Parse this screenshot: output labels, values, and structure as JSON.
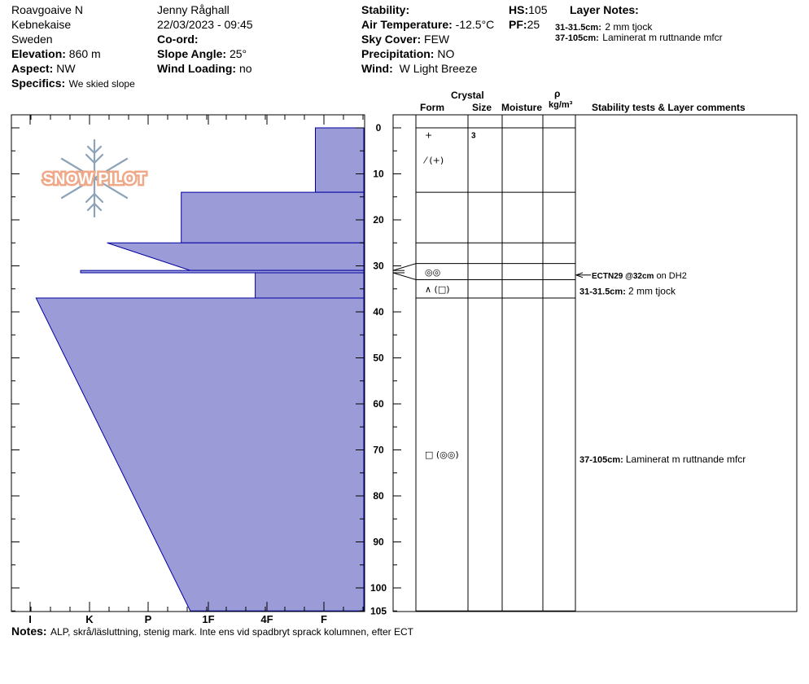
{
  "header": {
    "location": "Roavgoaive N",
    "region": "Kebnekaise",
    "country": "Sweden",
    "elevation_label": "Elevation:",
    "elevation_value": "860 m",
    "aspect_label": "Aspect:",
    "aspect_value": "NW",
    "specifics_label": "Specifics:",
    "specifics_value": "We skied slope",
    "observer": "Jenny Råghall",
    "datetime": "22/03/2023 - 09:45",
    "coord_label": "Co-ord:",
    "slope_label": "Slope Angle:",
    "slope_value": "25°",
    "wind_loading_label": "Wind Loading:",
    "wind_loading_value": "no",
    "stability_label": "Stability:",
    "air_temp_label": "Air Temperature:",
    "air_temp_value": "-12.5°C",
    "sky_label": "Sky Cover:",
    "sky_value": "FEW",
    "precip_label": "Precipitation:",
    "precip_value": "NO",
    "wind_label": "Wind:",
    "wind_value": "W Light Breeze",
    "hs_label": "HS:",
    "hs_value": "105",
    "pf_label": "PF:",
    "pf_value": "25",
    "layer_notes_title": "Layer Notes:",
    "layer_notes": [
      {
        "range": "31-31.5cm:",
        "text": "2 mm tjock"
      },
      {
        "range": "37-105cm:",
        "text": "Laminerat m ruttnande mfcr"
      }
    ]
  },
  "columns": {
    "crystal": "Crystal",
    "form": "Form",
    "size": "Size",
    "moisture": "Moisture",
    "rho": "ρ",
    "density_unit": "kg/m³",
    "stability": "Stability tests & Layer comments"
  },
  "logo_text": "SNOW PILOT",
  "chart_data": {
    "type": "snow-profile",
    "total_depth_cm": 105,
    "depth_ticks": [
      0,
      10,
      20,
      30,
      40,
      50,
      60,
      70,
      80,
      90,
      100,
      105
    ],
    "hardness_scale": [
      "I",
      "K",
      "P",
      "1F",
      "4F",
      "F"
    ],
    "layers": [
      {
        "top": 0,
        "bottom": 14,
        "hardness_top": 1.15,
        "hardness_bottom": 1.15
      },
      {
        "top": 14,
        "bottom": 25,
        "hardness_top": 3.45,
        "hardness_bottom": 3.45
      },
      {
        "top": 25,
        "bottom": 31,
        "hardness_top": 4.7,
        "hardness_bottom": 3.3
      },
      {
        "top": 31,
        "bottom": 31.5,
        "hardness_top": 5.15,
        "hardness_bottom": 5.15
      },
      {
        "top": 31.5,
        "bottom": 37,
        "hardness_top": 2.2,
        "hardness_bottom": 2.2
      },
      {
        "top": 37,
        "bottom": 105,
        "hardness_top": 5.9,
        "hardness_bottom": 3.3
      }
    ],
    "layer_boundaries": [
      0,
      14,
      25,
      29.5,
      33,
      37,
      105
    ],
    "crystal_rows": [
      {
        "depth": 1.5,
        "form": "+",
        "size": "3"
      },
      {
        "depth": 7,
        "form": "⁄ (+)",
        "size": ""
      },
      {
        "depth": 31.3,
        "form": "◎◎",
        "size": ""
      },
      {
        "depth": 35,
        "form": "∧ (□)",
        "size": ""
      },
      {
        "depth": 71,
        "form": "□ (◎◎)",
        "size": ""
      }
    ],
    "stability_tests": [
      {
        "depth": 32,
        "code": "ECTN29 @32cm",
        "text": "on DH2"
      }
    ],
    "layer_comments": [
      {
        "depth": 35.5,
        "range": "31-31.5cm:",
        "text": "2 mm tjock"
      },
      {
        "depth": 72,
        "range": "37-105cm:",
        "text": "Laminerat m ruttnande mfcr"
      }
    ]
  },
  "notes": {
    "label": "Notes:",
    "text": "ALP, skrå/läsluttning, stenig mark. Inte ens vid spadbryt sprack kolumnen, efter ECT"
  },
  "colors": {
    "profile_fill": "#9b9bd8",
    "profile_stroke": "#0000a0",
    "logo_orange": "#f0a988",
    "logo_blue": "#8da3b8"
  }
}
